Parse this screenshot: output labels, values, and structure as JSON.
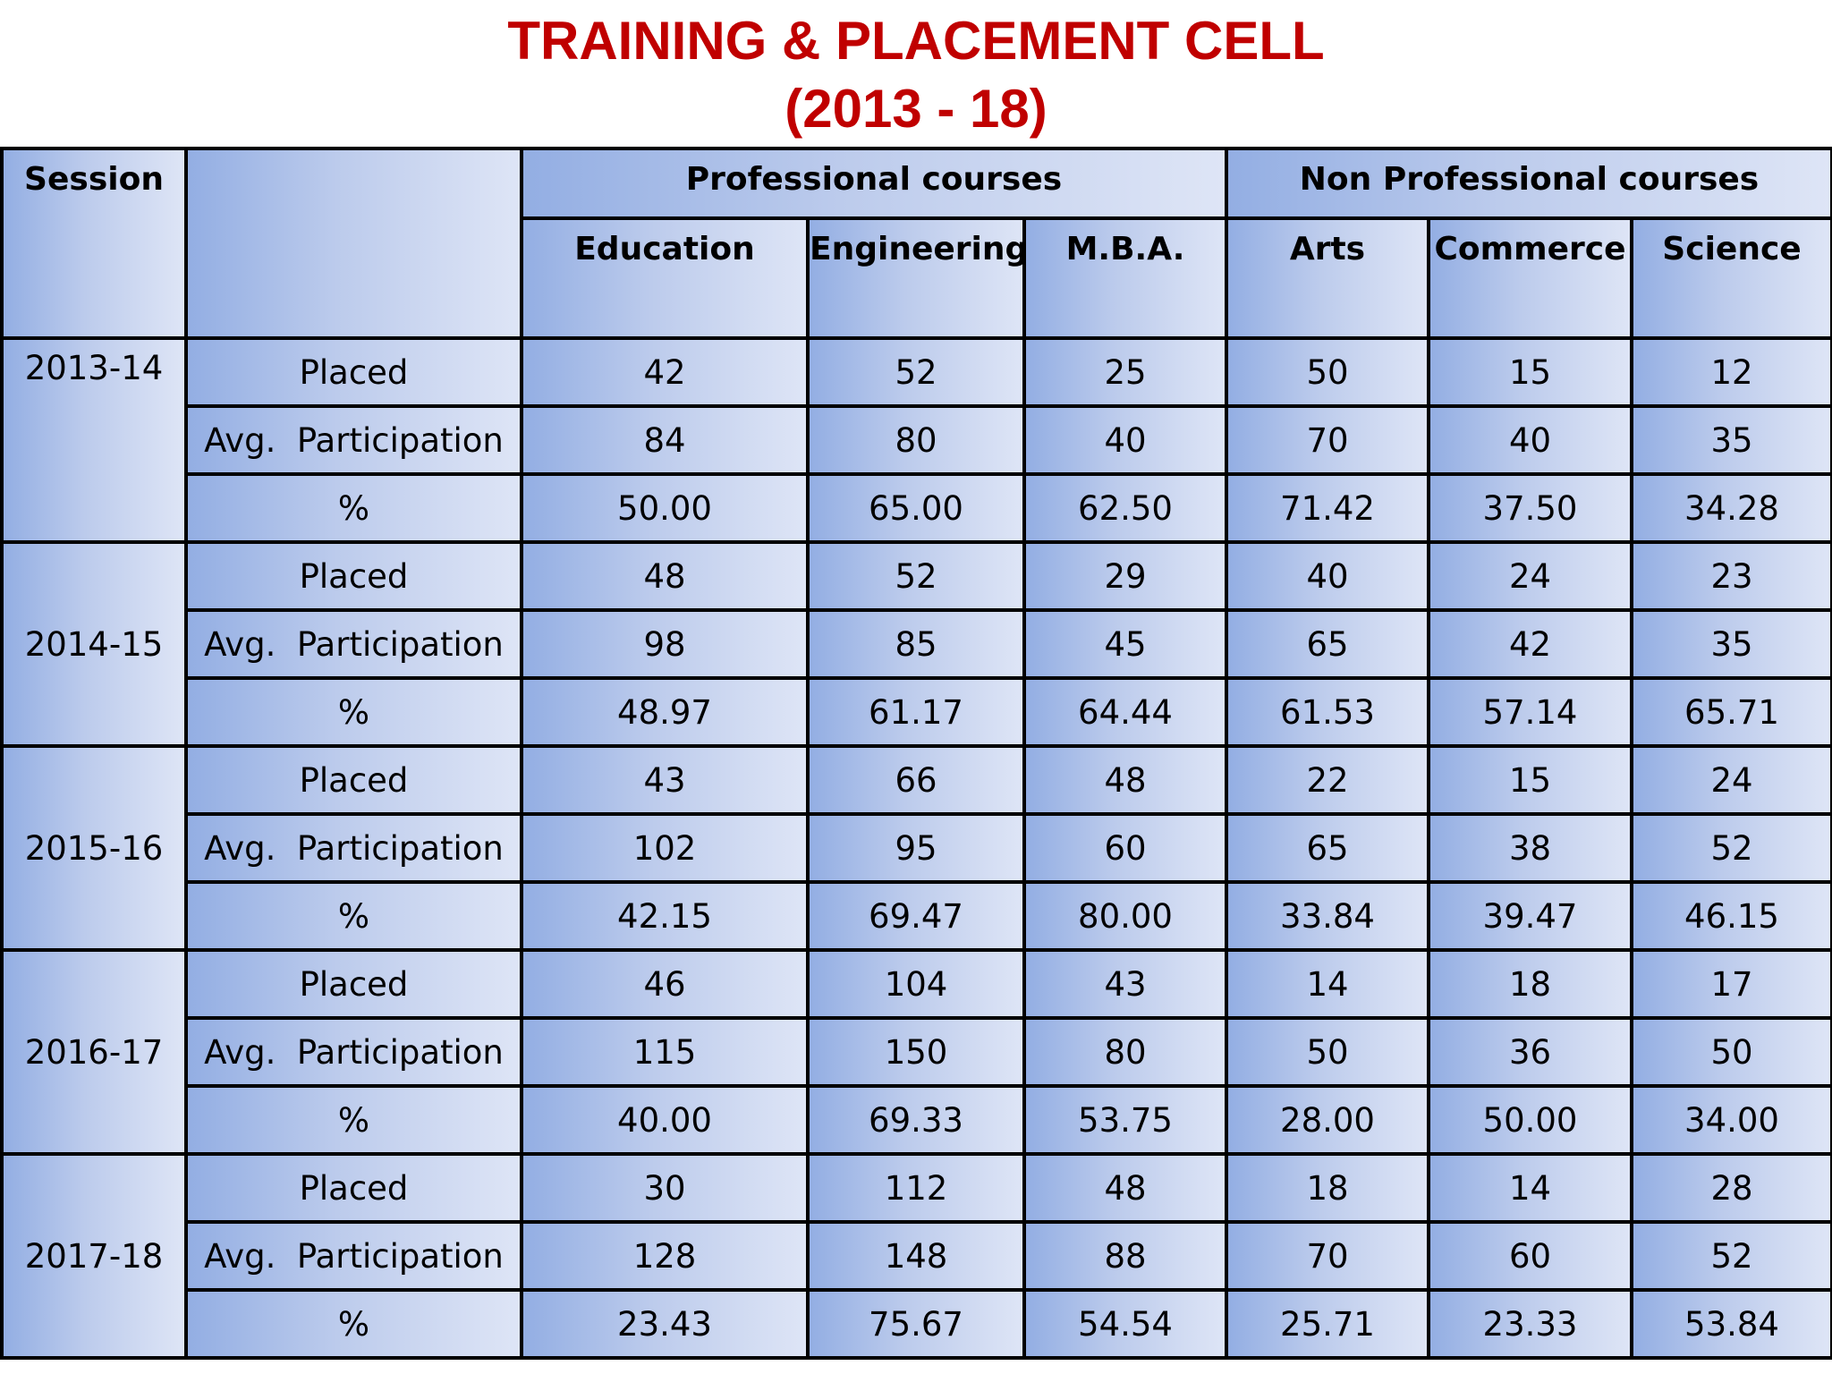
{
  "title_line1": "TRAINING & PLACEMENT CELL",
  "title_line2": "(2013 - 18)",
  "header": {
    "session": "Session",
    "metric": "",
    "professional": "Professional courses",
    "non_professional": "Non Professional courses",
    "courses": [
      "Education",
      "Engineering",
      "M.B.A.",
      "Arts",
      "Commerce",
      "Science"
    ]
  },
  "sessions": [
    {
      "session": "2013-14",
      "rows": [
        {
          "label": "Placed",
          "values": [
            "42",
            "52",
            "25",
            "50",
            "15",
            "12"
          ]
        },
        {
          "label": "Avg.  Participation",
          "values": [
            "84",
            "80",
            "40",
            "70",
            "40",
            "35"
          ]
        },
        {
          "label": "%",
          "values": [
            "50.00",
            "65.00",
            "62.50",
            "71.42",
            "37.50",
            "34.28"
          ]
        }
      ]
    },
    {
      "session": "2014-15",
      "rows": [
        {
          "label": "Placed",
          "values": [
            "48",
            "52",
            "29",
            "40",
            "24",
            "23"
          ]
        },
        {
          "label": "Avg.  Participation",
          "values": [
            "98",
            "85",
            "45",
            "65",
            "42",
            "35"
          ]
        },
        {
          "label": "%",
          "values": [
            "48.97",
            "61.17",
            "64.44",
            "61.53",
            "57.14",
            "65.71"
          ]
        }
      ]
    },
    {
      "session": "2015-16",
      "rows": [
        {
          "label": "Placed",
          "values": [
            "43",
            "66",
            "48",
            "22",
            "15",
            "24"
          ]
        },
        {
          "label": "Avg.  Participation",
          "values": [
            "102",
            "95",
            "60",
            "65",
            "38",
            "52"
          ]
        },
        {
          "label": "%",
          "values": [
            "42.15",
            "69.47",
            "80.00",
            "33.84",
            "39.47",
            "46.15"
          ]
        }
      ]
    },
    {
      "session": "2016-17",
      "rows": [
        {
          "label": "Placed",
          "values": [
            "46",
            "104",
            "43",
            "14",
            "18",
            "17"
          ]
        },
        {
          "label": "Avg.  Participation",
          "values": [
            "115",
            "150",
            "80",
            "50",
            "36",
            "50"
          ]
        },
        {
          "label": "%",
          "values": [
            "40.00",
            "69.33",
            "53.75",
            "28.00",
            "50.00",
            "34.00"
          ]
        }
      ]
    },
    {
      "session": "2017-18",
      "rows": [
        {
          "label": "Placed",
          "values": [
            "30",
            "112",
            "48",
            "18",
            "14",
            "28"
          ]
        },
        {
          "label": "Avg.  Participation",
          "values": [
            "128",
            "148",
            "88",
            "70",
            "60",
            "52"
          ]
        },
        {
          "label": "%",
          "values": [
            "23.43",
            "75.67",
            "54.54",
            "25.71",
            "23.33",
            "53.84"
          ]
        }
      ]
    }
  ],
  "colors": {
    "title": "#c00000",
    "cell_light": "#dee5f6",
    "cell_dark": "#93aee3",
    "border": "#000000"
  }
}
